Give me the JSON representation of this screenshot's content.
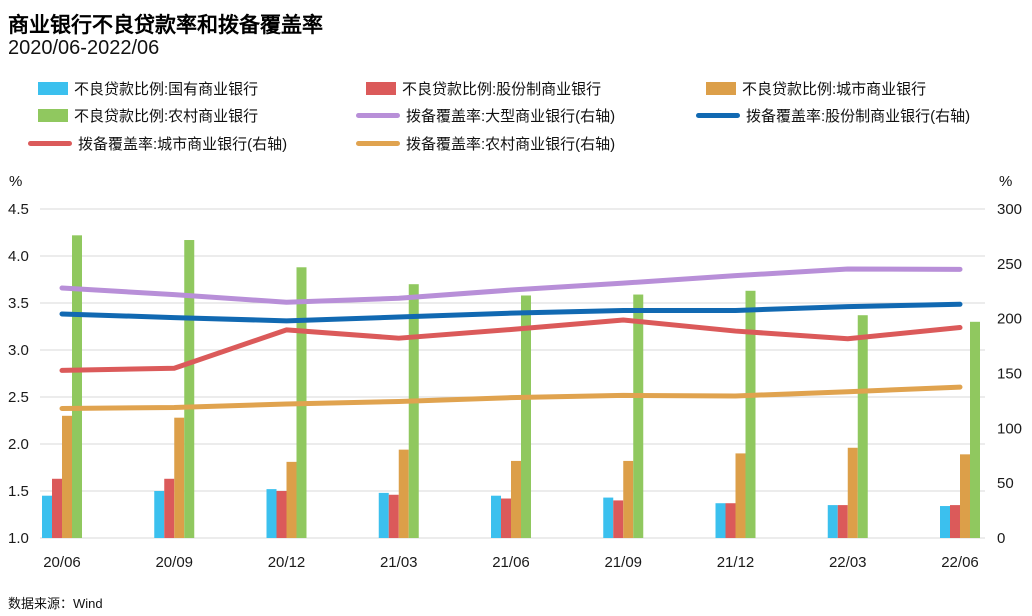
{
  "title": "商业银行不良贷款率和拨备覆盖率",
  "subtitle": "2020/06-2022/06",
  "source_note": "数据来源：Wind",
  "colors": {
    "background": "#FFFFFF",
    "grid": "#D9D9D9",
    "text": "#1A1A1A"
  },
  "chart_data": {
    "type": "bar",
    "subtype": "combo bar + line, dual axis",
    "title": "商业银行不良贷款率和拨备覆盖率",
    "subtitle": "2020/06-2022/06",
    "grid": true,
    "legend_position": "top",
    "categories": [
      "20/06",
      "20/09",
      "20/12",
      "21/03",
      "21/06",
      "21/09",
      "21/12",
      "22/03",
      "22/06"
    ],
    "left_axis": {
      "unit": "%",
      "min": 1.0,
      "max": 4.5,
      "tick_step": 0.5,
      "ticks": [
        "4.5",
        "4.0",
        "3.5",
        "3.0",
        "2.5",
        "2.0",
        "1.5",
        "1.0"
      ]
    },
    "right_axis": {
      "unit": "%",
      "min": 0,
      "max": 300,
      "tick_step": 50,
      "ticks": [
        "300",
        "250",
        "200",
        "150",
        "100",
        "50",
        "0"
      ]
    },
    "bar_series": [
      {
        "name": "不良贷款比例:国有商业银行",
        "color": "#3BC0EE",
        "axis": "left",
        "values": [
          1.45,
          1.5,
          1.52,
          1.48,
          1.45,
          1.43,
          1.37,
          1.35,
          1.34
        ]
      },
      {
        "name": "不良贷款比例:股份制商业银行",
        "color": "#DB5A5A",
        "axis": "left",
        "values": [
          1.63,
          1.63,
          1.5,
          1.46,
          1.42,
          1.4,
          1.37,
          1.35,
          1.35
        ]
      },
      {
        "name": "不良贷款比例:城市商业银行",
        "color": "#DC9F49",
        "axis": "left",
        "values": [
          2.3,
          2.28,
          1.81,
          1.94,
          1.82,
          1.82,
          1.9,
          1.96,
          1.89
        ]
      },
      {
        "name": "不良贷款比例:农村商业银行",
        "color": "#90C85F",
        "axis": "left",
        "values": [
          4.22,
          4.17,
          3.88,
          3.7,
          3.58,
          3.59,
          3.63,
          3.37,
          3.3
        ]
      }
    ],
    "line_series": [
      {
        "name": "拨备覆盖率:大型商业银行(右轴)",
        "color": "#B88FD8",
        "axis": "right",
        "values": [
          228.0,
          221.9,
          215.0,
          218.6,
          226.1,
          232.4,
          239.2,
          245.3,
          245.0
        ]
      },
      {
        "name": "拨备覆盖率:股份制商业银行(右轴)",
        "color": "#1169B2",
        "axis": "right",
        "values": [
          204.3,
          201.0,
          198.0,
          201.5,
          205.0,
          207.5,
          207.5,
          211.0,
          213.1
        ]
      },
      {
        "name": "拨备覆盖率:城市商业银行(右轴)",
        "color": "#DB5A5A",
        "axis": "right",
        "values": [
          152.8,
          154.8,
          189.8,
          182.2,
          190.1,
          198.8,
          188.7,
          181.7,
          191.9
        ]
      },
      {
        "name": "拨备覆盖率:农村商业银行(右轴)",
        "color": "#E0A34F",
        "axis": "right",
        "values": [
          118.1,
          119.0,
          122.2,
          124.5,
          128.0,
          130.0,
          129.5,
          133.4,
          137.6
        ]
      }
    ]
  }
}
